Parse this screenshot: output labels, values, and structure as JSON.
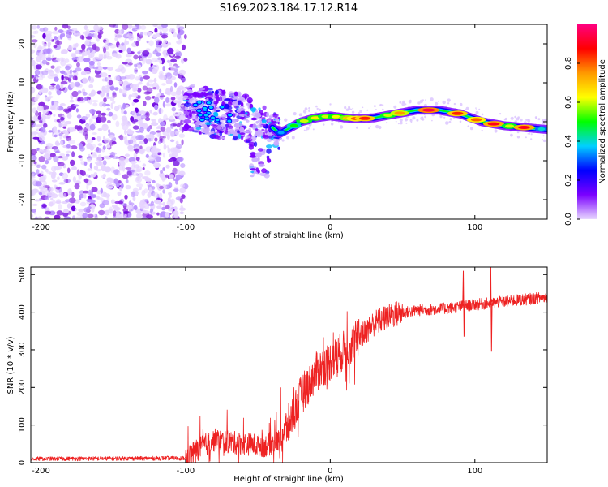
{
  "figure_title": "S169.2023.184.17.12.R14",
  "chart_data": [
    {
      "type": "heatmap",
      "title": "S169.2023.184.17.12.R14",
      "xlabel": "Height of straight line (km)",
      "ylabel": "Frequency (Hz)",
      "xlim": [
        -207,
        150
      ],
      "ylim": [
        -25,
        25
      ],
      "x_ticks": [
        -200,
        -100,
        0,
        100
      ],
      "y_ticks": [
        -20,
        -10,
        0,
        10,
        20
      ],
      "colorbar": {
        "label": "Normalized spectral amplitude",
        "range": [
          0,
          1
        ],
        "ticks": [
          0.0,
          0.2,
          0.4,
          0.6,
          0.8
        ],
        "colormap": [
          "#e8d8ff",
          "#7a00ff",
          "#0000ff",
          "#00d0ff",
          "#00ff00",
          "#ffff00",
          "#ff9900",
          "#ff0000",
          "#ff0080"
        ]
      },
      "noise_region_x": [
        -207,
        -100
      ],
      "ridge": [
        {
          "x": -100,
          "y": 4
        },
        {
          "x": -80,
          "y": 2
        },
        {
          "x": -60,
          "y": 1
        },
        {
          "x": -45,
          "y": 0
        },
        {
          "x": -35,
          "y": -3
        },
        {
          "x": -30,
          "y": -2
        },
        {
          "x": -20,
          "y": 0
        },
        {
          "x": -10,
          "y": 1
        },
        {
          "x": 0,
          "y": 1.5
        },
        {
          "x": 10,
          "y": 1
        },
        {
          "x": 20,
          "y": 0.8
        },
        {
          "x": 30,
          "y": 1
        },
        {
          "x": 45,
          "y": 2
        },
        {
          "x": 60,
          "y": 3
        },
        {
          "x": 75,
          "y": 3
        },
        {
          "x": 90,
          "y": 2
        },
        {
          "x": 105,
          "y": 0
        },
        {
          "x": 120,
          "y": -1
        },
        {
          "x": 135,
          "y": -1.5
        },
        {
          "x": 150,
          "y": -2
        }
      ]
    },
    {
      "type": "line",
      "xlabel": "Height of straight line (km)",
      "ylabel": "SNR (10 * v/v)",
      "xlim": [
        -207,
        150
      ],
      "ylim": [
        0,
        520
      ],
      "x_ticks": [
        -200,
        -100,
        0,
        100
      ],
      "y_ticks": [
        0,
        100,
        200,
        300,
        400,
        500
      ],
      "series": [
        {
          "name": "SNR",
          "color": "#ee2222",
          "trend": [
            {
              "x": -207,
              "y": 10
            },
            {
              "x": -100,
              "y": 12
            },
            {
              "x": -90,
              "y": 40
            },
            {
              "x": -80,
              "y": 60
            },
            {
              "x": -60,
              "y": 50
            },
            {
              "x": -45,
              "y": 45
            },
            {
              "x": -35,
              "y": 60
            },
            {
              "x": -28,
              "y": 110
            },
            {
              "x": -20,
              "y": 180
            },
            {
              "x": -10,
              "y": 240
            },
            {
              "x": 0,
              "y": 270
            },
            {
              "x": 10,
              "y": 300
            },
            {
              "x": 20,
              "y": 330
            },
            {
              "x": 30,
              "y": 370
            },
            {
              "x": 45,
              "y": 395
            },
            {
              "x": 60,
              "y": 405
            },
            {
              "x": 80,
              "y": 410
            },
            {
              "x": 100,
              "y": 420
            },
            {
              "x": 120,
              "y": 428
            },
            {
              "x": 150,
              "y": 440
            }
          ],
          "spikes": [
            {
              "x": 92,
              "y": 510
            },
            {
              "x": 92.5,
              "y": 335
            },
            {
              "x": 111,
              "y": 520
            },
            {
              "x": 111.5,
              "y": 295
            }
          ]
        }
      ]
    }
  ]
}
